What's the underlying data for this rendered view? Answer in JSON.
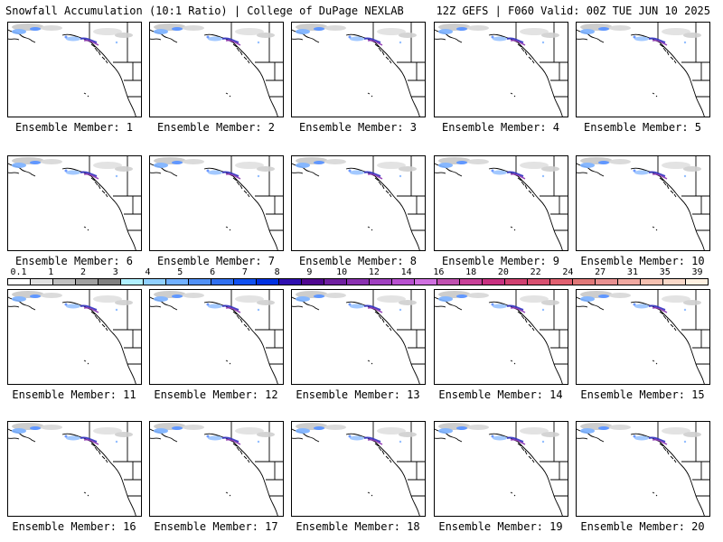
{
  "header": {
    "title_left": "Snowfall Accumulation (10:1 Ratio) | College of DuPage NEXLAB",
    "title_right": "12Z GEFS | F060 Valid: 00Z TUE JUN 10 2025"
  },
  "panels": [
    {
      "label": "Ensemble Member: 1"
    },
    {
      "label": "Ensemble Member: 2"
    },
    {
      "label": "Ensemble Member: 3"
    },
    {
      "label": "Ensemble Member: 4"
    },
    {
      "label": "Ensemble Member: 5"
    },
    {
      "label": "Ensemble Member: 6"
    },
    {
      "label": "Ensemble Member: 7"
    },
    {
      "label": "Ensemble Member: 8"
    },
    {
      "label": "Ensemble Member: 9"
    },
    {
      "label": "Ensemble Member: 10"
    },
    {
      "label": "Ensemble Member: 11"
    },
    {
      "label": "Ensemble Member: 12"
    },
    {
      "label": "Ensemble Member: 13"
    },
    {
      "label": "Ensemble Member: 14"
    },
    {
      "label": "Ensemble Member: 15"
    },
    {
      "label": "Ensemble Member: 16"
    },
    {
      "label": "Ensemble Member: 17"
    },
    {
      "label": "Ensemble Member: 18"
    },
    {
      "label": "Ensemble Member: 19"
    },
    {
      "label": "Ensemble Member: 20"
    }
  ],
  "legend": {
    "labels": [
      "0.1",
      "1",
      "2",
      "3",
      "4",
      "5",
      "6",
      "7",
      "8",
      "9",
      "10",
      "12",
      "14",
      "16",
      "18",
      "20",
      "22",
      "24",
      "27",
      "31",
      "35",
      "39"
    ],
    "colors": [
      "#ffffff",
      "#e0e0e0",
      "#c0c0c0",
      "#a0a0a0",
      "#808080",
      "#b0f0ff",
      "#90d0ff",
      "#70b0ff",
      "#5090f5",
      "#3070f0",
      "#1050f0",
      "#0030e0",
      "#3010b0",
      "#500890",
      "#7020a0",
      "#8a30b0",
      "#a040c0",
      "#b850d0",
      "#d070e0",
      "#c050b0",
      "#c84098",
      "#c83080",
      "#d04070",
      "#d85070",
      "#e06070",
      "#e07878",
      "#e89090",
      "#f0a8a0",
      "#f5c0b0",
      "#fad8c8",
      "#fff0e0"
    ]
  }
}
